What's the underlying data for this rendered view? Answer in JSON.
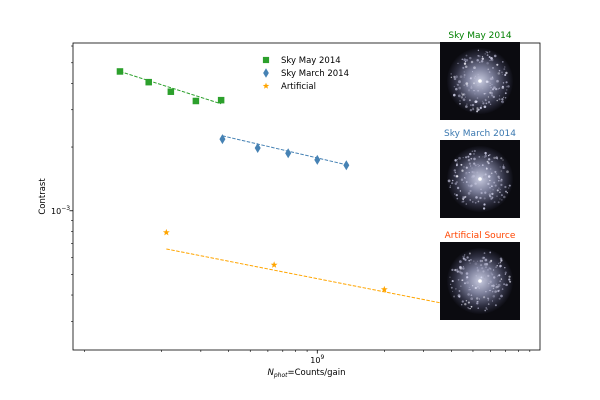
{
  "chart_data": {
    "type": "scatter",
    "title": "",
    "xlabel_prefix": "N",
    "xlabel_sub": "phot",
    "xlabel_suffix": "=Counts/gain",
    "ylabel": "Contrast",
    "xscale": "log",
    "yscale": "log",
    "xlim": [
      80000000.0,
      10000000000.0
    ],
    "ylim": [
      0.00022,
      0.0062
    ],
    "x_tick_labels": [
      {
        "value": 1000000000.0,
        "base": "10",
        "exp": "9"
      }
    ],
    "y_tick_labels": [
      {
        "value": 0.001,
        "base": "10",
        "exp": "−3"
      }
    ],
    "legend_position": "upper-center",
    "series": [
      {
        "name": "Sky May 2014",
        "marker": "square",
        "color": "#2ca02c",
        "x": [
          130000000.0,
          175000000.0,
          220000000.0,
          285000000.0,
          370000000.0
        ],
        "y": [
          0.00455,
          0.00405,
          0.00365,
          0.0033,
          0.00333
        ],
        "fit": {
          "x": [
            130000000.0,
            370000000.0
          ],
          "y": [
            0.00455,
            0.0032
          ]
        }
      },
      {
        "name": "Sky March 2014",
        "marker": "diamond",
        "color": "#4682b4",
        "x": [
          375000000.0,
          540000000.0,
          740000000.0,
          1000000000.0,
          1350000000.0
        ],
        "y": [
          0.00218,
          0.00198,
          0.00187,
          0.00174,
          0.00164
        ],
        "fit": {
          "x": [
            375000000.0,
            1350000000.0
          ],
          "y": [
            0.00226,
            0.00165
          ]
        }
      },
      {
        "name": "Artificial",
        "marker": "star",
        "color": "#ffa500",
        "x": [
          210000000.0,
          640000000.0,
          2000000000.0,
          6800000000.0
        ],
        "y": [
          0.00079,
          0.000555,
          0.000425,
          0.000328
        ],
        "fit": {
          "x": [
            210000000.0,
            6000000000.0
          ],
          "y": [
            0.00066,
            0.00033
          ]
        }
      }
    ]
  },
  "insets": [
    {
      "title": "Sky May 2014",
      "color": "#008000"
    },
    {
      "title": "Sky March 2014",
      "color": "#3a78b0"
    },
    {
      "title": "Artificial Source",
      "color": "#ff4500"
    }
  ]
}
